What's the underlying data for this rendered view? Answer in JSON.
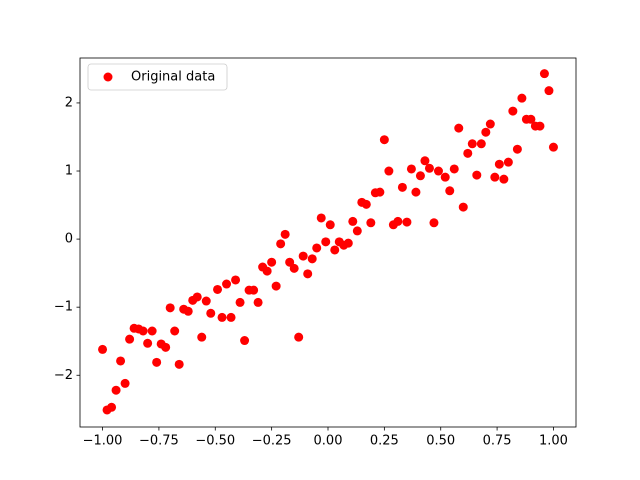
{
  "chart_data": {
    "type": "scatter",
    "series": [
      {
        "name": "Original data",
        "color": "red",
        "x": [
          -1.0,
          -0.98,
          -0.96,
          -0.94,
          -0.92,
          -0.9,
          -0.88,
          -0.86,
          -0.84,
          -0.82,
          -0.8,
          -0.78,
          -0.76,
          -0.74,
          -0.72,
          -0.7,
          -0.68,
          -0.66,
          -0.64,
          -0.62,
          -0.6,
          -0.58,
          -0.56,
          -0.54,
          -0.52,
          -0.49,
          -0.47,
          -0.45,
          -0.43,
          -0.41,
          -0.39,
          -0.37,
          -0.35,
          -0.33,
          -0.31,
          -0.29,
          -0.27,
          -0.25,
          -0.23,
          -0.21,
          -0.19,
          -0.17,
          -0.15,
          -0.13,
          -0.11,
          -0.09,
          -0.07,
          -0.05,
          -0.03,
          -0.01,
          0.01,
          0.03,
          0.05,
          0.07,
          0.09,
          0.11,
          0.13,
          0.15,
          0.17,
          0.19,
          0.21,
          0.23,
          0.25,
          0.27,
          0.29,
          0.31,
          0.33,
          0.35,
          0.37,
          0.39,
          0.41,
          0.43,
          0.45,
          0.47,
          0.49,
          0.52,
          0.54,
          0.56,
          0.58,
          0.6,
          0.62,
          0.64,
          0.66,
          0.68,
          0.7,
          0.72,
          0.74,
          0.76,
          0.78,
          0.8,
          0.82,
          0.84,
          0.86,
          0.88,
          0.9,
          0.92,
          0.94,
          0.96,
          0.98,
          1.0
        ],
        "values": [
          -1.62,
          -2.51,
          -2.47,
          -2.22,
          -1.79,
          -2.12,
          -1.47,
          -1.31,
          -1.32,
          -1.35,
          -1.53,
          -1.35,
          -1.81,
          -1.54,
          -1.59,
          -1.01,
          -1.35,
          -1.84,
          -1.03,
          -1.06,
          -0.9,
          -0.85,
          -1.44,
          -0.91,
          -1.09,
          -0.74,
          -1.15,
          -0.66,
          -1.15,
          -0.6,
          -0.93,
          -1.49,
          -0.75,
          -0.75,
          -0.93,
          -0.41,
          -0.47,
          -0.34,
          -0.69,
          -0.07,
          0.07,
          -0.34,
          -0.43,
          -1.44,
          -0.25,
          -0.51,
          -0.29,
          -0.13,
          0.31,
          -0.04,
          0.21,
          -0.16,
          -0.04,
          -0.09,
          -0.06,
          0.26,
          0.12,
          0.54,
          0.51,
          0.24,
          0.68,
          0.69,
          1.46,
          1.0,
          0.21,
          0.26,
          0.76,
          0.25,
          1.03,
          0.69,
          0.93,
          1.15,
          1.04,
          0.24,
          1.0,
          0.91,
          0.71,
          1.03,
          1.63,
          0.47,
          1.26,
          1.4,
          0.94,
          1.4,
          1.57,
          1.69,
          0.91,
          1.1,
          0.88,
          1.13,
          1.88,
          1.32,
          2.07,
          1.76,
          1.76,
          1.66,
          1.66,
          2.43,
          2.18,
          1.35
        ]
      }
    ],
    "xlim": [
      -1.1,
      1.1
    ],
    "ylim": [
      -2.76,
      2.66
    ],
    "xticks": [
      {
        "value": -1,
        "label": "−1.00"
      },
      {
        "value": -0.75,
        "label": "−0.75"
      },
      {
        "value": -0.5,
        "label": "−0.50"
      },
      {
        "value": -0.25,
        "label": "−0.25"
      },
      {
        "value": 0,
        "label": "0.00"
      },
      {
        "value": 0.25,
        "label": "0.25"
      },
      {
        "value": 0.5,
        "label": "0.50"
      },
      {
        "value": 0.75,
        "label": "0.75"
      },
      {
        "value": 1,
        "label": "1.00"
      }
    ],
    "yticks": [
      {
        "value": -2,
        "label": "−2"
      },
      {
        "value": -1,
        "label": "−1"
      },
      0,
      1,
      2
    ],
    "legend": "upper left"
  }
}
